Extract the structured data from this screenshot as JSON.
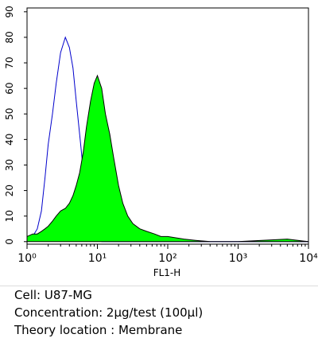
{
  "chart_data": {
    "type": "histogram-overlay",
    "xlabel": "FL1-H",
    "xscale": "log",
    "x": [
      1,
      1.2,
      1.4,
      1.6,
      1.8,
      2,
      2.3,
      2.6,
      3,
      3.5,
      4,
      4.5,
      5,
      5.6,
      6.3,
      7,
      8,
      9,
      10,
      11.5,
      13,
      15,
      17,
      20,
      23,
      27,
      32,
      40,
      50,
      65,
      80,
      100,
      130,
      170,
      250,
      400,
      1000,
      5000,
      10000
    ],
    "series": [
      {
        "color": "#0000cc",
        "filled": false,
        "values": [
          0,
          2,
          5,
          12,
          25,
          38,
          50,
          62,
          74,
          80,
          76,
          68,
          55,
          42,
          28,
          18,
          8,
          3,
          1,
          0,
          0,
          0,
          0,
          0,
          0,
          0,
          0,
          0,
          0,
          0,
          0,
          0,
          0,
          0,
          0,
          0,
          0,
          0,
          0
        ]
      },
      {
        "color": "#00ff00",
        "filled": true,
        "values": [
          2,
          3,
          3,
          4,
          5,
          6,
          8,
          10,
          12,
          13,
          15,
          18,
          22,
          27,
          35,
          45,
          55,
          62,
          65,
          60,
          50,
          42,
          33,
          22,
          15,
          10,
          7,
          5,
          4,
          3,
          2,
          2,
          1.5,
          1,
          0.5,
          0,
          0,
          1,
          0
        ]
      }
    ],
    "xlim": [
      1,
      10000
    ],
    "xticks": [
      {
        "value": 1,
        "label": "10⁰"
      },
      {
        "value": 10,
        "label": "10¹"
      },
      {
        "value": 100,
        "label": "10²"
      },
      {
        "value": 1000,
        "label": "10³"
      },
      {
        "value": 10000,
        "label": "10⁴"
      }
    ],
    "xminorticks": [
      2,
      3,
      4,
      5,
      6,
      7,
      8,
      9,
      20,
      30,
      40,
      50,
      60,
      70,
      80,
      90,
      200,
      300,
      400,
      500,
      600,
      700,
      800,
      900,
      2000,
      3000,
      4000,
      5000,
      6000,
      7000,
      8000,
      9000
    ],
    "ylim": [
      -1,
      91.5
    ],
    "yticks": [
      0,
      10,
      20,
      30,
      40,
      50,
      60,
      70,
      80,
      90
    ]
  },
  "caption": [
    "Cell: U87-MG",
    "Concentration: 2μg/test (100μl)",
    "Theory location : Membrane"
  ]
}
